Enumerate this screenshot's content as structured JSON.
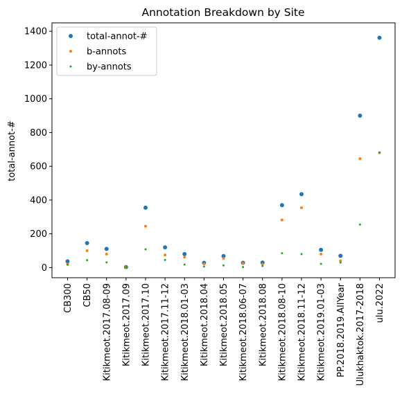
{
  "chart_data": {
    "type": "scatter",
    "title": "Annotation Breakdown by Site",
    "xlabel": "",
    "ylabel": "total-annot-#",
    "ylim": [
      -60,
      1450
    ],
    "yticks": [
      0,
      200,
      400,
      600,
      800,
      1000,
      1200,
      1400
    ],
    "grid": false,
    "legend_position": "top-left",
    "categories": [
      "CB300",
      "CB50",
      "Kitikmeot.2017.08-09",
      "Kitikmeot.2017.09",
      "Kitikmeot.2017.10",
      "Kitikmeot.2017.11-12",
      "Kitikmeot.2018.01-03",
      "Kitikmeot.2018.04",
      "Kitikmeot.2018.05",
      "Kitikmeot.2018.06-07",
      "Kitikmeot.2018.08",
      "Kitikmeot.2018.08-10",
      "Kitikmeot.2018.11-12",
      "Kitikmeot.2019.01-03",
      "PP.2018.2019.AllYear",
      "Ulukhaktok.2017-2018",
      "ulu.2022"
    ],
    "series": [
      {
        "name": "total-annot-#",
        "color": "#1f77b4",
        "marker_size": "large",
        "values": [
          37,
          145,
          111,
          3,
          355,
          120,
          80,
          28,
          68,
          28,
          30,
          370,
          435,
          105,
          70,
          900,
          1362
        ]
      },
      {
        "name": "b-annots",
        "color": "#ff7f0e",
        "marker_size": "medium",
        "values": [
          20,
          100,
          80,
          3,
          245,
          75,
          62,
          22,
          55,
          25,
          20,
          282,
          355,
          80,
          40,
          645,
          680
        ]
      },
      {
        "name": "by-annots",
        "color": "#2ca02c",
        "marker_size": "small",
        "values": [
          17,
          44,
          31,
          3,
          108,
          45,
          18,
          6,
          13,
          3,
          10,
          85,
          80,
          22,
          30,
          255,
          682
        ]
      }
    ]
  }
}
